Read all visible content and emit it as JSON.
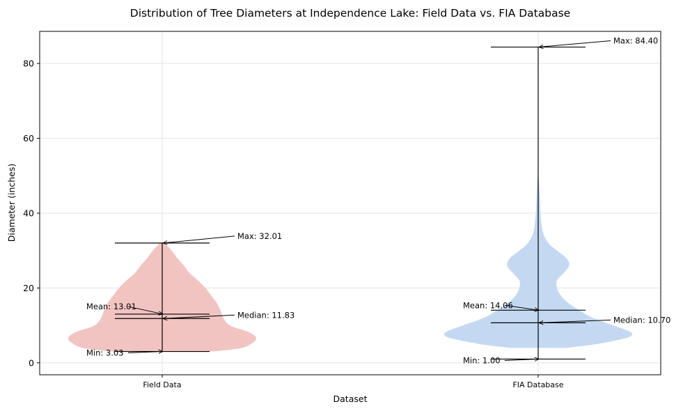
{
  "chart_data": {
    "type": "violin",
    "title": "Distribution of Tree Diameters at Independence Lake: Field Data vs. FIA Database",
    "xlabel": "Dataset",
    "ylabel": "Diameter (inches)",
    "categories": [
      "Field Data",
      "FIA Database"
    ],
    "ylim": [
      -3.2,
      88.6
    ],
    "yticks": [
      0,
      20,
      40,
      60,
      80
    ],
    "grid": true,
    "series": [
      {
        "name": "Field Data",
        "color": "#f1c4c2",
        "stats": {
          "min": 3.03,
          "max": 32.01,
          "mean": 13.01,
          "median": 11.83
        },
        "annotations": {
          "max": "Max: 32.01",
          "mean": "Mean: 13.01",
          "median": "Median: 11.83",
          "min": "Min: 3.03"
        },
        "density_profile": [
          [
            3.03,
            0.55
          ],
          [
            4.0,
            0.85
          ],
          [
            5.5,
            0.97
          ],
          [
            6.5,
            1.0
          ],
          [
            7.5,
            0.97
          ],
          [
            8.5,
            0.89
          ],
          [
            10.0,
            0.72
          ],
          [
            12.0,
            0.65
          ],
          [
            14.0,
            0.62
          ],
          [
            16.0,
            0.58
          ],
          [
            18.0,
            0.52
          ],
          [
            20.0,
            0.46
          ],
          [
            22.0,
            0.38
          ],
          [
            24.0,
            0.29
          ],
          [
            26.0,
            0.23
          ],
          [
            28.0,
            0.16
          ],
          [
            30.0,
            0.1
          ],
          [
            32.01,
            0.02
          ]
        ]
      },
      {
        "name": "FIA Database",
        "color": "#c4d9f1",
        "stats": {
          "min": 1.0,
          "max": 84.4,
          "mean": 14.06,
          "median": 10.7
        },
        "annotations": {
          "max": "Max: 84.40",
          "mean": "Mean: 14.06",
          "median": "Median: 10.70",
          "min": "Min: 1.00"
        },
        "density_profile": [
          [
            4.0,
            0.3
          ],
          [
            5.0,
            0.62
          ],
          [
            6.5,
            0.92
          ],
          [
            7.5,
            1.0
          ],
          [
            8.5,
            0.96
          ],
          [
            10.0,
            0.8
          ],
          [
            12.0,
            0.58
          ],
          [
            14.0,
            0.44
          ],
          [
            16.0,
            0.32
          ],
          [
            18.0,
            0.24
          ],
          [
            20.0,
            0.2
          ],
          [
            22.0,
            0.2
          ],
          [
            24.0,
            0.27
          ],
          [
            26.0,
            0.33
          ],
          [
            28.0,
            0.3
          ],
          [
            30.0,
            0.2
          ],
          [
            32.0,
            0.11
          ],
          [
            35.0,
            0.05
          ],
          [
            40.0,
            0.025
          ],
          [
            45.0,
            0.017
          ],
          [
            50.0,
            0.004
          ]
        ]
      }
    ]
  }
}
